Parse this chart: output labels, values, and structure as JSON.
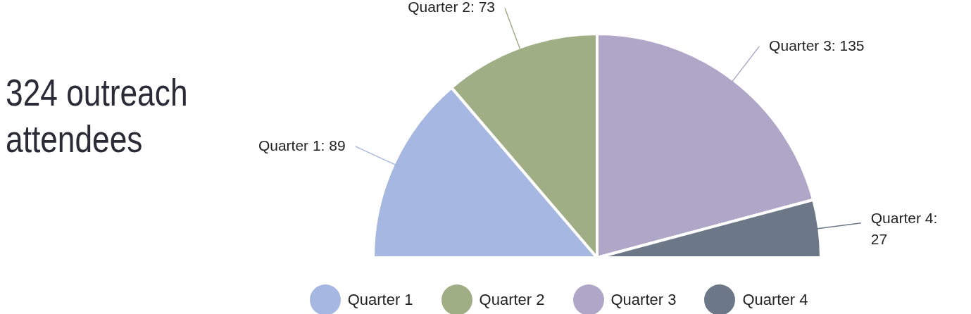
{
  "chart_data": {
    "type": "pie",
    "title": "324 outreach attendees",
    "categories": [
      "Quarter 1",
      "Quarter 2",
      "Quarter 3",
      "Quarter 4"
    ],
    "values": [
      89,
      73,
      135,
      27
    ],
    "colors": [
      "#a6b7e1",
      "#a0ae86",
      "#afa7c8",
      "#6c7788"
    ],
    "value_labels": [
      "Quarter 1: 89",
      "Quarter 2: 73",
      "Quarter 3: 135",
      "Quarter 4: 27"
    ],
    "legend": "bottom"
  }
}
